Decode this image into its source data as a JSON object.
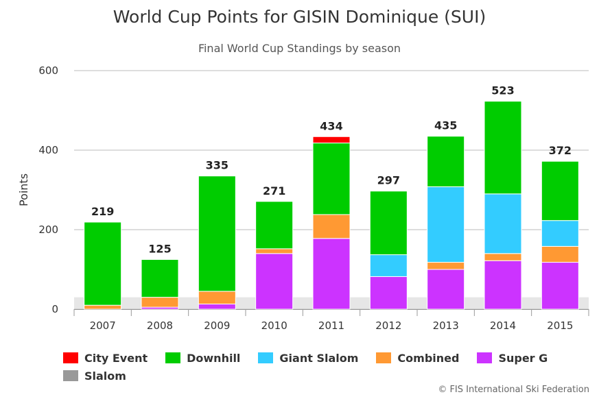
{
  "chart_data": {
    "type": "bar",
    "stacked": true,
    "title": "World Cup Points for GISIN Dominique (SUI)",
    "subtitle": "Final World Cup Standings by season",
    "xlabel": "",
    "ylabel": "Points",
    "ylim": [
      0,
      600
    ],
    "yticks": [
      0,
      200,
      400,
      600
    ],
    "categories": [
      "2007",
      "2008",
      "2009",
      "2010",
      "2011",
      "2012",
      "2013",
      "2014",
      "2015"
    ],
    "totals": [
      "219",
      "125",
      "335",
      "271",
      "434",
      "297",
      "435",
      "523",
      "372"
    ],
    "series": [
      {
        "name": "Super G",
        "color": "#cc33ff",
        "values": [
          0,
          5,
          13,
          140,
          178,
          82,
          100,
          122,
          118
        ]
      },
      {
        "name": "Combined",
        "color": "#ff9933",
        "values": [
          10,
          25,
          32,
          12,
          60,
          0,
          18,
          18,
          40
        ]
      },
      {
        "name": "Giant Slalom",
        "color": "#33ccff",
        "values": [
          0,
          0,
          0,
          0,
          0,
          55,
          190,
          150,
          65
        ]
      },
      {
        "name": "Downhill",
        "color": "#00cc00",
        "values": [
          209,
          95,
          290,
          119,
          180,
          160,
          127,
          233,
          149
        ]
      },
      {
        "name": "City Event",
        "color": "#ff0000",
        "values": [
          0,
          0,
          0,
          0,
          16,
          0,
          0,
          0,
          0
        ]
      },
      {
        "name": "Slalom",
        "color": "#999999",
        "values": [
          0,
          0,
          0,
          0,
          0,
          0,
          0,
          0,
          0
        ]
      }
    ],
    "legend": [
      {
        "name": "City Event",
        "color": "#ff0000"
      },
      {
        "name": "Downhill",
        "color": "#00cc00"
      },
      {
        "name": "Giant Slalom",
        "color": "#33ccff"
      },
      {
        "name": "Combined",
        "color": "#ff9933"
      },
      {
        "name": "Super G",
        "color": "#cc33ff"
      },
      {
        "name": "Slalom",
        "color": "#999999"
      }
    ],
    "legend_position": "bottom-left"
  },
  "credit": "© FIS International Ski Federation"
}
